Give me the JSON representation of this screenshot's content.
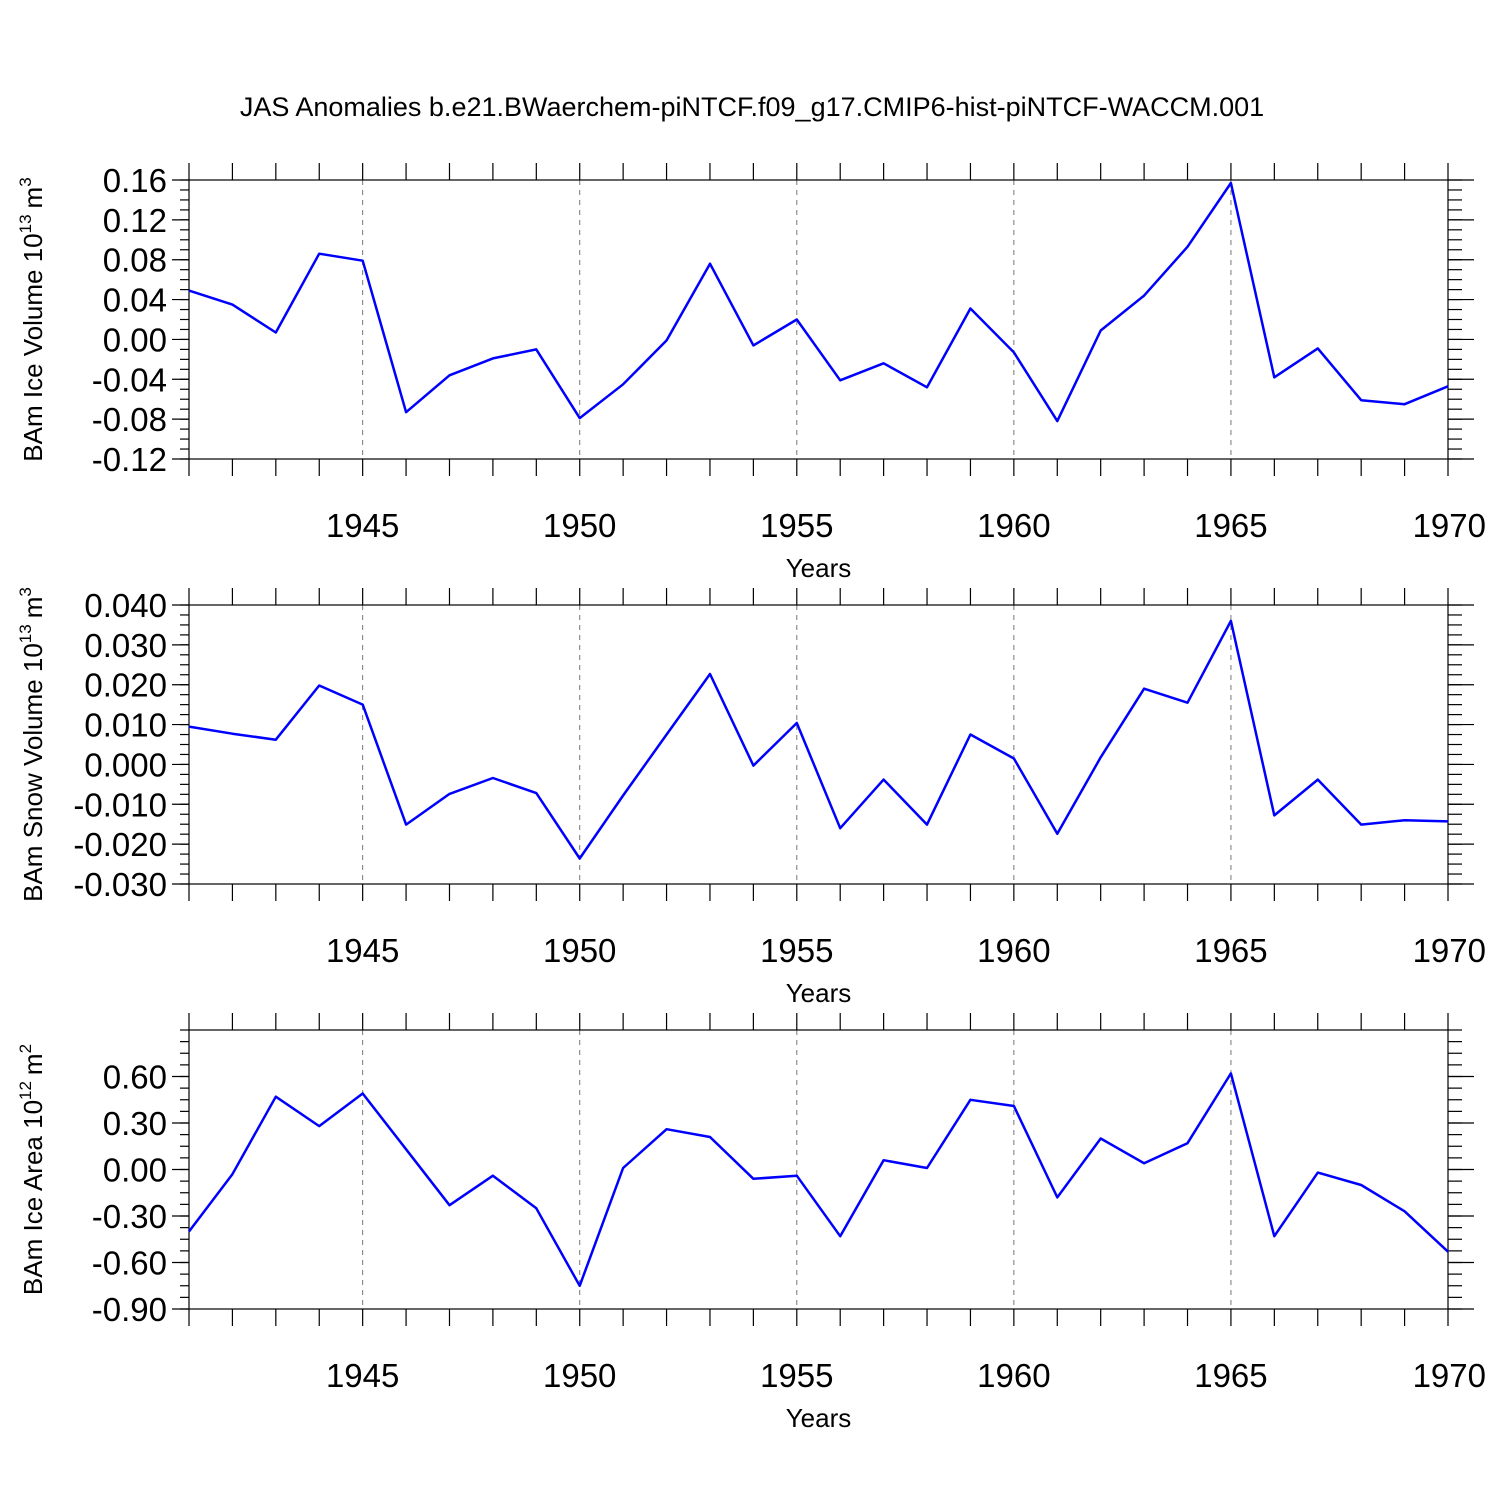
{
  "title": "JAS Anomalies b.e21.BWaerchem-piNTCF.f09_g17.CMIP6-hist-piNTCF-WACCM.001",
  "colors": {
    "line": "#0000ff",
    "axis": "#000000",
    "grid": "#777777"
  },
  "chart_data": [
    {
      "type": "line",
      "ylabel_main": "BAm Ice Volume 10",
      "ylabel_exp": "13",
      "ylabel_unit": "m",
      "ylabel_unit_exp": "3",
      "xlabel": "Years",
      "xlim": [
        1941,
        1970
      ],
      "ylim": [
        -0.12,
        0.16
      ],
      "yticks": [
        -0.12,
        -0.08,
        -0.04,
        0.0,
        0.04,
        0.08,
        0.12,
        0.16
      ],
      "ytick_labels": [
        "-0.12",
        "-0.08",
        "-0.04",
        "0.00",
        "0.04",
        "0.08",
        "0.12",
        "0.16"
      ],
      "xticks": [
        1945,
        1950,
        1955,
        1960,
        1965,
        1970
      ],
      "xtick_labels": [
        "1945",
        "1950",
        "1955",
        "1960",
        "1965",
        "1970"
      ],
      "grid": "vertical dashed at major x ticks",
      "x": [
        1941,
        1942,
        1943,
        1944,
        1945,
        1946,
        1947,
        1948,
        1949,
        1950,
        1951,
        1952,
        1953,
        1954,
        1955,
        1956,
        1957,
        1958,
        1959,
        1960,
        1961,
        1962,
        1963,
        1964,
        1965,
        1966,
        1967,
        1968,
        1969,
        1970
      ],
      "values": [
        0.049,
        0.035,
        0.007,
        0.086,
        0.079,
        -0.073,
        -0.036,
        -0.019,
        -0.01,
        -0.079,
        -0.045,
        -0.001,
        0.076,
        -0.006,
        0.02,
        -0.041,
        -0.024,
        -0.048,
        0.031,
        -0.013,
        -0.082,
        0.009,
        0.044,
        0.093,
        0.157,
        -0.038,
        -0.009,
        -0.061,
        -0.065,
        -0.047
      ]
    },
    {
      "type": "line",
      "ylabel_main": "BAm Snow Volume 10",
      "ylabel_exp": "13",
      "ylabel_unit": "m",
      "ylabel_unit_exp": "3",
      "xlabel": "Years",
      "xlim": [
        1941,
        1970
      ],
      "ylim": [
        -0.03,
        0.04
      ],
      "yticks": [
        -0.03,
        -0.02,
        -0.01,
        0.0,
        0.01,
        0.02,
        0.03,
        0.04
      ],
      "ytick_labels": [
        "-0.030",
        "-0.020",
        "-0.010",
        "0.000",
        "0.010",
        "0.020",
        "0.030",
        "0.040"
      ],
      "xticks": [
        1945,
        1950,
        1955,
        1960,
        1965,
        1970
      ],
      "xtick_labels": [
        "1945",
        "1950",
        "1955",
        "1960",
        "1965",
        "1970"
      ],
      "grid": "vertical dashed at major x ticks",
      "x": [
        1941,
        1942,
        1943,
        1944,
        1945,
        1946,
        1947,
        1948,
        1949,
        1950,
        1951,
        1952,
        1953,
        1954,
        1955,
        1956,
        1957,
        1958,
        1959,
        1960,
        1961,
        1962,
        1963,
        1964,
        1965,
        1966,
        1967,
        1968,
        1969,
        1970
      ],
      "values": [
        0.0095,
        0.0077,
        0.0062,
        0.0198,
        0.015,
        -0.0151,
        -0.0074,
        -0.0034,
        -0.0072,
        -0.0236,
        -0.0078,
        0.0075,
        0.0227,
        -0.0003,
        0.0104,
        -0.016,
        -0.0038,
        -0.0151,
        0.0075,
        0.0015,
        -0.0174,
        0.0018,
        0.019,
        0.0155,
        0.036,
        -0.0128,
        -0.0038,
        -0.0151,
        -0.014,
        -0.0143
      ]
    },
    {
      "type": "line",
      "ylabel_main": "BAm Ice Area 10",
      "ylabel_exp": "12",
      "ylabel_unit": "m",
      "ylabel_unit_exp": "2",
      "xlabel": "Years",
      "xlim": [
        1941,
        1970
      ],
      "ylim": [
        -0.9,
        0.9
      ],
      "yticks": [
        -0.9,
        -0.6,
        -0.3,
        0.0,
        0.3,
        0.6
      ],
      "ytick_labels": [
        "-0.90",
        "-0.60",
        "-0.30",
        "0.00",
        "0.30",
        "0.60"
      ],
      "xticks": [
        1945,
        1950,
        1955,
        1960,
        1965,
        1970
      ],
      "xtick_labels": [
        "1945",
        "1950",
        "1955",
        "1960",
        "1965",
        "1970"
      ],
      "grid": "vertical dashed at major x ticks",
      "x": [
        1941,
        1942,
        1943,
        1944,
        1945,
        1946,
        1947,
        1948,
        1949,
        1950,
        1951,
        1952,
        1953,
        1954,
        1955,
        1956,
        1957,
        1958,
        1959,
        1960,
        1961,
        1962,
        1963,
        1964,
        1965,
        1966,
        1967,
        1968,
        1969,
        1970
      ],
      "values": [
        -0.4,
        -0.03,
        0.47,
        0.28,
        0.49,
        0.13,
        -0.23,
        -0.04,
        -0.25,
        -0.75,
        0.01,
        0.26,
        0.21,
        -0.06,
        -0.04,
        -0.43,
        0.06,
        0.01,
        0.45,
        0.41,
        -0.18,
        0.2,
        0.04,
        0.17,
        0.62,
        -0.43,
        -0.02,
        -0.1,
        -0.27,
        -0.53
      ]
    }
  ]
}
